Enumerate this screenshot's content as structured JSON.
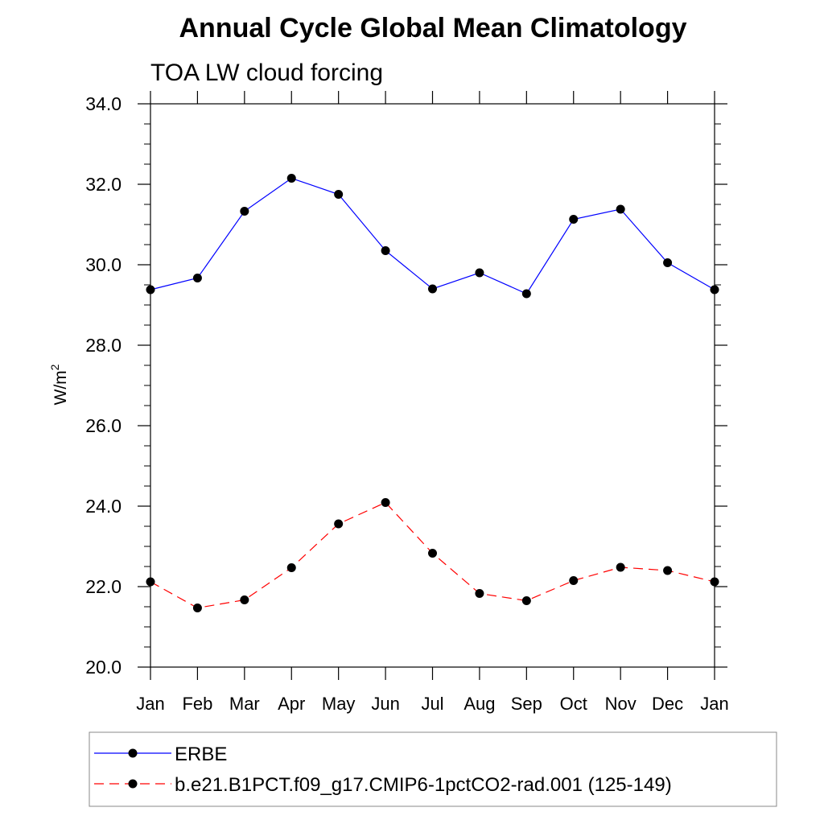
{
  "chart_data": {
    "type": "line",
    "title": "Annual Cycle Global Mean Climatology",
    "subtitle": "TOA LW cloud forcing",
    "ylabel_base": "W/m",
    "ylabel_sup": "2",
    "xlabel": "",
    "categories": [
      "Jan",
      "Feb",
      "Mar",
      "Apr",
      "May",
      "Jun",
      "Jul",
      "Aug",
      "Sep",
      "Oct",
      "Nov",
      "Dec",
      "Jan"
    ],
    "ylim": [
      20.0,
      34.0
    ],
    "yticks": [
      "20.0",
      "22.0",
      "24.0",
      "26.0",
      "28.0",
      "30.0",
      "32.0",
      "34.0"
    ],
    "grid": false,
    "legend_position": "bottom",
    "series": [
      {
        "name": "ERBE",
        "color": "#0000ff",
        "dash": "solid",
        "values": [
          29.38,
          29.67,
          31.33,
          32.15,
          31.75,
          30.35,
          29.4,
          29.8,
          29.28,
          31.13,
          31.38,
          30.05,
          29.38
        ]
      },
      {
        "name": "b.e21.B1PCT.f09_g17.CMIP6-1pctCO2-rad.001 (125-149)",
        "color": "#ff0000",
        "dash": "dashed",
        "values": [
          22.12,
          21.47,
          21.67,
          22.47,
          23.56,
          24.09,
          22.83,
          21.83,
          21.65,
          22.15,
          22.48,
          22.4,
          22.12
        ]
      }
    ]
  }
}
